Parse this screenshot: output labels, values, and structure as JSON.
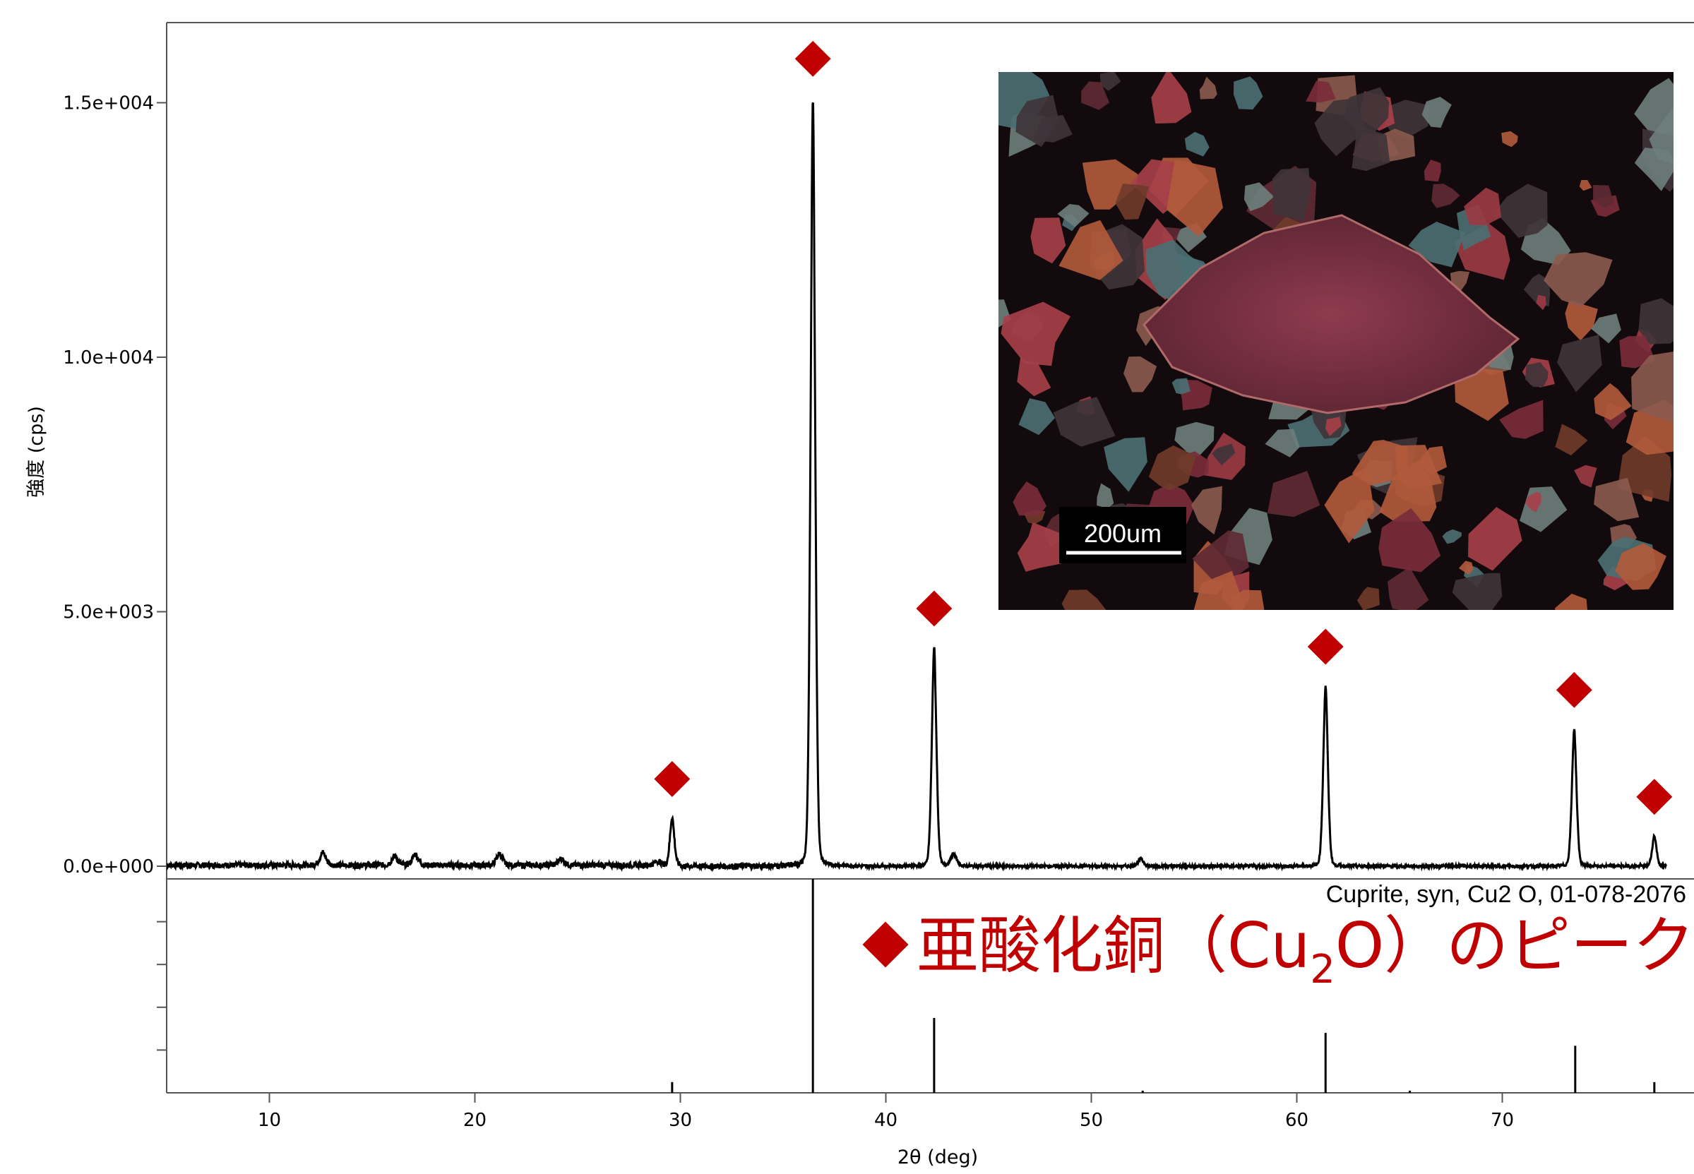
{
  "chart_data": {
    "type": "line",
    "xlabel": "2θ (deg)",
    "ylabel": "強度 (cps)",
    "xlim": [
      5,
      78
    ],
    "ylim": [
      0,
      16500
    ],
    "x_ticks": [
      10,
      20,
      30,
      40,
      50,
      60,
      70
    ],
    "y_ticks": [
      {
        "value": 0,
        "label": "0.0e+000"
      },
      {
        "value": 5000,
        "label": "5.0e+003"
      },
      {
        "value": 10000,
        "label": "1.0e+004"
      },
      {
        "value": 15000,
        "label": "1.5e+004"
      }
    ],
    "grid": false,
    "baseline": 0,
    "series": [
      {
        "peaks": [
          {
            "x": 29.6,
            "y": 950
          },
          {
            "x": 36.45,
            "y": 15100
          },
          {
            "x": 42.35,
            "y": 4300
          },
          {
            "x": 61.4,
            "y": 3550
          },
          {
            "x": 73.5,
            "y": 2700
          },
          {
            "x": 77.4,
            "y": 600
          }
        ],
        "minor_peaks": [
          {
            "x": 12.6,
            "y": 250
          },
          {
            "x": 16.1,
            "y": 180
          },
          {
            "x": 17.1,
            "y": 220
          },
          {
            "x": 21.2,
            "y": 230
          },
          {
            "x": 24.2,
            "y": 130
          },
          {
            "x": 28.9,
            "y": 80
          },
          {
            "x": 43.3,
            "y": 230
          },
          {
            "x": 52.4,
            "y": 140
          }
        ]
      }
    ],
    "marker_x": [
      29.6,
      36.45,
      42.35,
      61.4,
      73.5,
      77.4
    ],
    "reference": {
      "label": "Cuprite, syn, Cu2 O, 01-078-2076",
      "sticks": [
        {
          "x": 29.6,
          "rel": 5
        },
        {
          "x": 36.45,
          "rel": 100
        },
        {
          "x": 42.35,
          "rel": 35
        },
        {
          "x": 52.5,
          "rel": 1
        },
        {
          "x": 61.4,
          "rel": 28
        },
        {
          "x": 65.5,
          "rel": 0.5
        },
        {
          "x": 73.55,
          "rel": 22
        },
        {
          "x": 77.4,
          "rel": 5
        }
      ]
    },
    "legend": {
      "text_a": "亜酸化銅（Cu",
      "subscript": "2",
      "text_b": "O）のピーク"
    },
    "inset": {
      "scale_label": "200um"
    }
  },
  "colors": {
    "line": "#000000",
    "marker": "#c00000",
    "legend": "#c00000"
  }
}
